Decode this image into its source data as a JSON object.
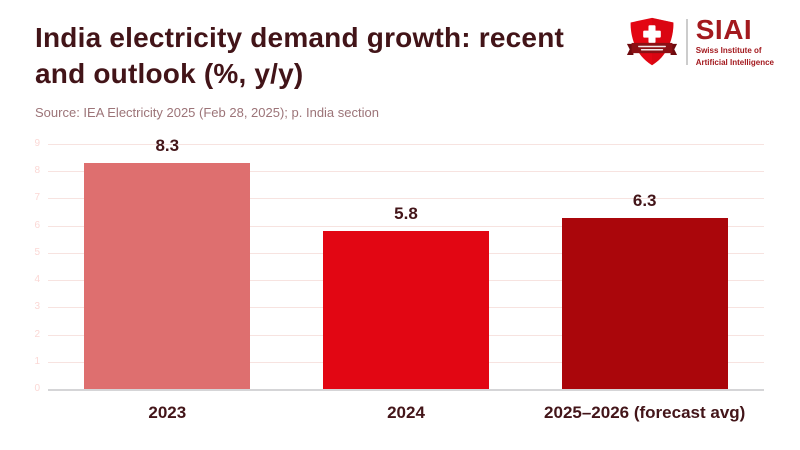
{
  "header": {
    "title": "India electricity demand growth: recent\nand outlook (%, y/y)",
    "source": "Source: IEA Electricity 2025 (Feb 28, 2025); p. India section"
  },
  "logo": {
    "acronym": "SIAI",
    "name_line1": "Swiss Institute of",
    "name_line2": "Artificial Intelligence",
    "shield_icon": "swiss-shield-icon",
    "colors": {
      "shield_red": "#E30613",
      "ribbon_dark_red": "#8B1014",
      "text_red": "#A3191E"
    }
  },
  "chart_data": {
    "type": "bar",
    "title": "India electricity demand growth: recent and outlook (%, y/y)",
    "categories": [
      "2023",
      "2024",
      "2025–2026 (forecast avg)"
    ],
    "values": [
      8.3,
      5.8,
      6.3
    ],
    "value_labels": [
      "8.3",
      "5.8",
      "6.3"
    ],
    "bar_colors": [
      "#DE6F6F",
      "#E20613",
      "#AA060B"
    ],
    "ylim": [
      0,
      9
    ],
    "yticks": [
      0,
      1,
      2,
      3,
      4,
      5,
      6,
      7,
      8,
      9
    ],
    "grid": true,
    "legend": false,
    "xlabel": "",
    "ylabel": ""
  }
}
